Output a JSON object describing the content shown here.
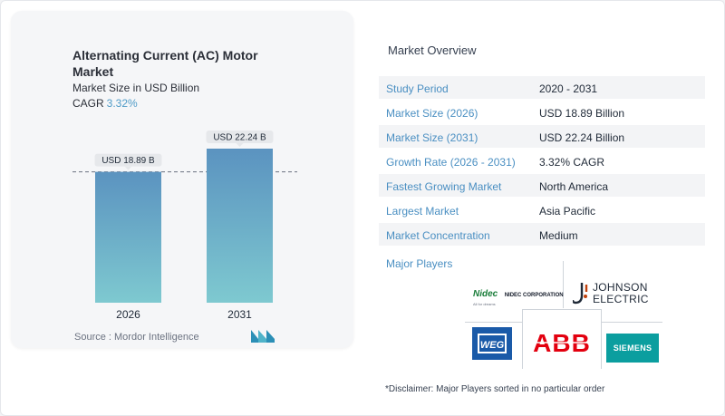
{
  "left_panel": {
    "title": "Alternating Current (AC) Motor Market",
    "subtitle": "Market Size in USD Billion",
    "cagr_label": "CAGR",
    "cagr_value": "3.32%",
    "source": "Source :  Mordor Intelligence"
  },
  "chart_data": {
    "type": "bar",
    "categories": [
      "2026",
      "2031"
    ],
    "values": [
      18.89,
      22.24
    ],
    "data_labels": [
      "USD 18.89 B",
      "USD 22.24 B"
    ],
    "unit": "USD Billion",
    "ylim": [
      0,
      22.24
    ],
    "reference_line": {
      "value": 18.89,
      "style": "dashed"
    },
    "grid": false,
    "colors": {
      "bar_top": "#5b93c0",
      "bar_bottom": "#7ec9d0",
      "label_bg": "#e6e8eb"
    }
  },
  "overview": {
    "title": "Market Overview",
    "rows": [
      {
        "label": "Study Period",
        "value": "2020 - 2031"
      },
      {
        "label": "Market Size (2026)",
        "value": "USD 18.89 Billion"
      },
      {
        "label": "Market Size (2031)",
        "value": "USD 22.24 Billion"
      },
      {
        "label": "Growth Rate (2026 - 2031)",
        "value": "3.32% CAGR"
      },
      {
        "label": "Fastest Growing Market",
        "value": "North America"
      },
      {
        "label": "Largest Market",
        "value": "Asia Pacific"
      },
      {
        "label": "Market Concentration",
        "value": "Medium"
      }
    ]
  },
  "players": {
    "title": "Major Players",
    "logos": {
      "nidec": "Nidec",
      "nidec_corp": "NIDEC CORPORATION",
      "nidec_tag": "All for dreams",
      "johnson_line1": "JOHNSON",
      "johnson_line2": "ELECTRIC",
      "weg": "WEG",
      "abb": "ABB",
      "siemens": "SIEMENS"
    }
  },
  "disclaimer": "*Disclaimer: Major Players sorted in no particular order"
}
